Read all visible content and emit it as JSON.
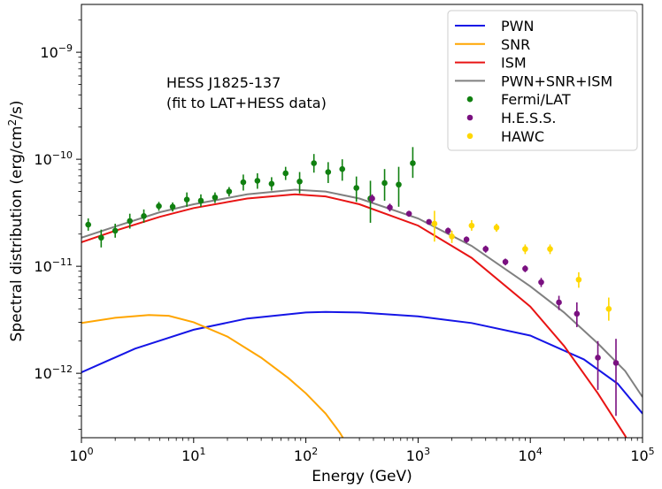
{
  "chart_data": {
    "type": "scatter",
    "title": "",
    "annotation_lines": [
      "HESS J1825-137",
      "(fit to LAT+HESS data)"
    ],
    "xlabel": "Energy (GeV)",
    "ylabel": "Spectral distribution (erg/cm",
    "ylabel_sup": "2",
    "ylabel_tail": "/s)",
    "xscale": "log",
    "yscale": "log",
    "xlim": [
      1,
      100000
    ],
    "ylim": [
      2.5e-13,
      2.8e-09
    ],
    "x_ticks": [
      {
        "value": 1,
        "base": "10",
        "exp": "0"
      },
      {
        "value": 10,
        "base": "10",
        "exp": "1"
      },
      {
        "value": 100,
        "base": "10",
        "exp": "2"
      },
      {
        "value": 1000,
        "base": "10",
        "exp": "3"
      },
      {
        "value": 10000,
        "base": "10",
        "exp": "4"
      },
      {
        "value": 100000,
        "base": "10",
        "exp": "5"
      }
    ],
    "y_ticks": [
      {
        "value": 1e-12,
        "base": "10",
        "exp": "−12"
      },
      {
        "value": 1e-11,
        "base": "10",
        "exp": "−11"
      },
      {
        "value": 1e-10,
        "base": "10",
        "exp": "−10"
      },
      {
        "value": 1e-09,
        "base": "10",
        "exp": "−9"
      }
    ],
    "legend_position": "top-right",
    "models": [
      {
        "name": "PWN",
        "color": "#1515e6",
        "points": [
          [
            1,
            1.02e-12
          ],
          [
            3,
            1.7e-12
          ],
          [
            10,
            2.55e-12
          ],
          [
            30,
            3.25e-12
          ],
          [
            100,
            3.7e-12
          ],
          [
            150,
            3.75e-12
          ],
          [
            300,
            3.7e-12
          ],
          [
            1000,
            3.4e-12
          ],
          [
            3000,
            2.95e-12
          ],
          [
            10000,
            2.25e-12
          ],
          [
            30000,
            1.35e-12
          ],
          [
            60000,
            8e-13
          ],
          [
            100000,
            4.2e-13
          ]
        ]
      },
      {
        "name": "SNR",
        "color": "#ffa500",
        "points": [
          [
            1,
            2.95e-12
          ],
          [
            2,
            3.3e-12
          ],
          [
            4,
            3.5e-12
          ],
          [
            6,
            3.45e-12
          ],
          [
            10,
            3e-12
          ],
          [
            20,
            2.2e-12
          ],
          [
            40,
            1.4e-12
          ],
          [
            70,
            9e-13
          ],
          [
            100,
            6.5e-13
          ],
          [
            150,
            4.2e-13
          ],
          [
            200,
            2.8e-13
          ],
          [
            230,
            2.2e-13
          ]
        ]
      },
      {
        "name": "ISM",
        "color": "#e81414",
        "points": [
          [
            1,
            1.68e-11
          ],
          [
            2,
            2.15e-11
          ],
          [
            5,
            2.9e-11
          ],
          [
            10,
            3.5e-11
          ],
          [
            30,
            4.3e-11
          ],
          [
            80,
            4.7e-11
          ],
          [
            150,
            4.5e-11
          ],
          [
            300,
            3.8e-11
          ],
          [
            1000,
            2.4e-11
          ],
          [
            3000,
            1.2e-11
          ],
          [
            10000,
            4.2e-12
          ],
          [
            20000,
            1.8e-12
          ],
          [
            40000,
            6.5e-13
          ],
          [
            70000,
            2.6e-13
          ],
          [
            80000,
            2e-13
          ]
        ]
      },
      {
        "name": "PWN+SNR+ISM",
        "color": "#808080",
        "points": [
          [
            1,
            1.85e-11
          ],
          [
            2,
            2.35e-11
          ],
          [
            5,
            3.2e-11
          ],
          [
            10,
            3.8e-11
          ],
          [
            30,
            4.7e-11
          ],
          [
            80,
            5.2e-11
          ],
          [
            150,
            5e-11
          ],
          [
            300,
            4.3e-11
          ],
          [
            1000,
            2.8e-11
          ],
          [
            3000,
            1.55e-11
          ],
          [
            10000,
            6.5e-12
          ],
          [
            20000,
            3.7e-12
          ],
          [
            40000,
            1.9e-12
          ],
          [
            70000,
            1.05e-12
          ],
          [
            100000,
            6e-13
          ]
        ]
      }
    ],
    "series": [
      {
        "name": "Fermi/LAT",
        "color": "#108010",
        "points": [
          {
            "x": 1.15,
            "y": 2.45e-11,
            "lo": 2.15e-11,
            "hi": 2.8e-11
          },
          {
            "x": 1.5,
            "y": 1.85e-11,
            "lo": 1.5e-11,
            "hi": 2.2e-11
          },
          {
            "x": 2.0,
            "y": 2.15e-11,
            "lo": 1.85e-11,
            "hi": 2.5e-11
          },
          {
            "x": 2.7,
            "y": 2.65e-11,
            "lo": 2.25e-11,
            "hi": 3.1e-11
          },
          {
            "x": 3.6,
            "y": 2.95e-11,
            "lo": 2.55e-11,
            "hi": 3.4e-11
          },
          {
            "x": 4.9,
            "y": 3.65e-11,
            "lo": 3.3e-11,
            "hi": 4e-11
          },
          {
            "x": 6.5,
            "y": 3.6e-11,
            "lo": 3.25e-11,
            "hi": 3.95e-11
          },
          {
            "x": 8.7,
            "y": 4.2e-11,
            "lo": 3.6e-11,
            "hi": 4.9e-11
          },
          {
            "x": 11.6,
            "y": 4.1e-11,
            "lo": 3.6e-11,
            "hi": 4.7e-11
          },
          {
            "x": 15.5,
            "y": 4.4e-11,
            "lo": 3.9e-11,
            "hi": 4.9e-11
          },
          {
            "x": 20.7,
            "y": 5e-11,
            "lo": 4.5e-11,
            "hi": 5.5e-11
          },
          {
            "x": 27.7,
            "y": 6.1e-11,
            "lo": 5.1e-11,
            "hi": 7.2e-11
          },
          {
            "x": 37,
            "y": 6.3e-11,
            "lo": 5.3e-11,
            "hi": 7.4e-11
          },
          {
            "x": 49.5,
            "y": 5.9e-11,
            "lo": 5.1e-11,
            "hi": 6.8e-11
          },
          {
            "x": 66,
            "y": 7.4e-11,
            "lo": 6.4e-11,
            "hi": 8.5e-11
          },
          {
            "x": 88,
            "y": 6.2e-11,
            "lo": 4.8e-11,
            "hi": 7.6e-11
          },
          {
            "x": 118,
            "y": 9.2e-11,
            "lo": 7.5e-11,
            "hi": 1.12e-10
          },
          {
            "x": 158,
            "y": 7.6e-11,
            "lo": 6e-11,
            "hi": 9.4e-11
          },
          {
            "x": 211,
            "y": 8.1e-11,
            "lo": 6.3e-11,
            "hi": 1e-10
          },
          {
            "x": 282,
            "y": 5.4e-11,
            "lo": 4e-11,
            "hi": 6.9e-11
          },
          {
            "x": 376,
            "y": 4.3e-11,
            "lo": 2.55e-11,
            "hi": 6.3e-11
          },
          {
            "x": 503,
            "y": 6e-11,
            "lo": 4.1e-11,
            "hi": 8.1e-11
          },
          {
            "x": 672,
            "y": 5.8e-11,
            "lo": 3.6e-11,
            "hi": 8.5e-11
          },
          {
            "x": 897,
            "y": 9.2e-11,
            "lo": 6.7e-11,
            "hi": 1.3e-10
          }
        ]
      },
      {
        "name": "H.E.S.S.",
        "color": "#7a1080",
        "points": [
          {
            "x": 390,
            "y": 4.3e-11,
            "lo": 3.9e-11,
            "hi": 4.7e-11
          },
          {
            "x": 560,
            "y": 3.55e-11,
            "lo": 3.25e-11,
            "hi": 3.85e-11
          },
          {
            "x": 830,
            "y": 3.1e-11,
            "lo": 2.9e-11,
            "hi": 3.3e-11
          },
          {
            "x": 1250,
            "y": 2.6e-11,
            "lo": 2.45e-11,
            "hi": 2.75e-11
          },
          {
            "x": 1850,
            "y": 2.15e-11,
            "lo": 2e-11,
            "hi": 2.3e-11
          },
          {
            "x": 2700,
            "y": 1.78e-11,
            "lo": 1.65e-11,
            "hi": 1.9e-11
          },
          {
            "x": 4000,
            "y": 1.45e-11,
            "lo": 1.34e-11,
            "hi": 1.56e-11
          },
          {
            "x": 6000,
            "y": 1.1e-11,
            "lo": 1.02e-11,
            "hi": 1.18e-11
          },
          {
            "x": 9000,
            "y": 9.5e-12,
            "lo": 8.8e-12,
            "hi": 1.02e-11
          },
          {
            "x": 12500,
            "y": 7.1e-12,
            "lo": 6.4e-12,
            "hi": 7.8e-12
          },
          {
            "x": 18000,
            "y": 4.6e-12,
            "lo": 3.9e-12,
            "hi": 5.3e-12
          },
          {
            "x": 26000,
            "y": 3.6e-12,
            "lo": 2.7e-12,
            "hi": 4.6e-12
          },
          {
            "x": 40000,
            "y": 1.4e-12,
            "lo": 7e-13,
            "hi": 2e-12
          },
          {
            "x": 58000,
            "y": 1.25e-12,
            "lo": 4e-13,
            "hi": 2.1e-12
          }
        ]
      },
      {
        "name": "HAWC",
        "color": "#ffd700",
        "points": [
          {
            "x": 1400,
            "y": 2.5e-11,
            "lo": 1.7e-11,
            "hi": 3.3e-11
          },
          {
            "x": 2000,
            "y": 1.9e-11,
            "lo": 1.65e-11,
            "hi": 2.15e-11
          },
          {
            "x": 3000,
            "y": 2.4e-11,
            "lo": 2.15e-11,
            "hi": 2.7e-11
          },
          {
            "x": 5000,
            "y": 2.3e-11,
            "lo": 2.1e-11,
            "hi": 2.5e-11
          },
          {
            "x": 9000,
            "y": 1.45e-11,
            "lo": 1.3e-11,
            "hi": 1.6e-11
          },
          {
            "x": 15000,
            "y": 1.45e-11,
            "lo": 1.3e-11,
            "hi": 1.6e-11
          },
          {
            "x": 27000,
            "y": 7.5e-12,
            "lo": 6.3e-12,
            "hi": 8.8e-12
          },
          {
            "x": 50000,
            "y": 4e-12,
            "lo": 3.1e-12,
            "hi": 5.1e-12
          }
        ]
      }
    ]
  }
}
